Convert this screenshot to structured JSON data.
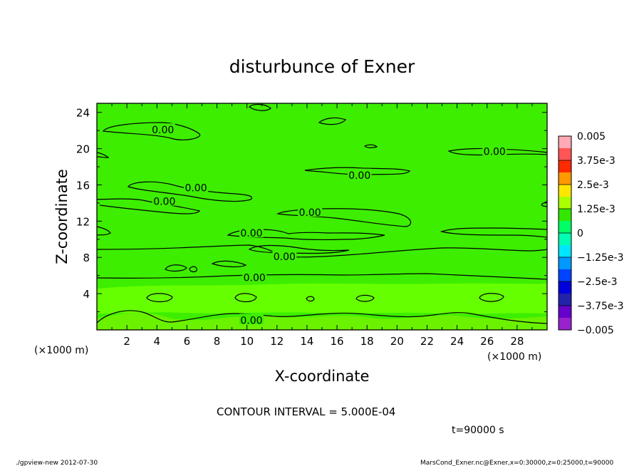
{
  "chart_data": {
    "type": "contour",
    "title": "disturbunce of Exner",
    "xlabel": "X-coordinate",
    "ylabel": "Z-coordinate",
    "x_unit": "(×1000 m)",
    "x_unit_right": "(×1000 m)",
    "z_unit": "(×1000 m)",
    "xlim": [
      0,
      30
    ],
    "ylim": [
      0,
      25
    ],
    "x_ticks": [
      "2",
      "4",
      "6",
      "8",
      "10",
      "12",
      "14",
      "16",
      "18",
      "20",
      "22",
      "24",
      "26",
      "28"
    ],
    "y_ticks": [
      "4",
      "8",
      "12",
      "16",
      "20",
      "24"
    ],
    "contour_labels": [
      {
        "text": "0.00",
        "x": 4.4,
        "z": 22.0
      },
      {
        "text": "0.00",
        "x": 26.5,
        "z": 19.6
      },
      {
        "text": "0.00",
        "x": 17.5,
        "z": 17.0
      },
      {
        "text": "0.00",
        "x": 6.6,
        "z": 15.6
      },
      {
        "text": "0.00",
        "x": 4.5,
        "z": 14.1
      },
      {
        "text": "0.00",
        "x": 14.2,
        "z": 12.9
      },
      {
        "text": "0.00",
        "x": 10.3,
        "z": 10.6
      },
      {
        "text": "0.00",
        "x": 12.5,
        "z": 8.0
      },
      {
        "text": "0.00",
        "x": 10.5,
        "z": 5.7
      },
      {
        "text": "0.00",
        "x": 10.3,
        "z": 1.0
      }
    ],
    "colorbar": {
      "labels": [
        "0.005",
        "3.75e-3",
        "2.5e-3",
        "1.25e-3",
        "0",
        "−1.25e-3",
        "−2.5e-3",
        "−3.75e-3",
        "−0.005"
      ],
      "colors": [
        "#ffaab4",
        "#ff5555",
        "#ff2a00",
        "#ff9900",
        "#ffe600",
        "#aaff00",
        "#33e600",
        "#00ff66",
        "#00ffb4",
        "#00e6ff",
        "#0099ff",
        "#0044ff",
        "#0000dd",
        "#2222aa",
        "#6600cc",
        "#9922cc"
      ]
    },
    "fill_colors": {
      "main": "#3dee00",
      "strong": "#66ff00",
      "weak": "#6bf200"
    },
    "contour_interval": "CONTOUR INTERVAL = 5.000E-04",
    "time": "t=90000 s"
  },
  "footer": {
    "left": "./gpview-new  2012-07-30",
    "right": "MarsCond_Exner.nc@Exner,x=0:30000,z=0:25000,t=90000"
  }
}
